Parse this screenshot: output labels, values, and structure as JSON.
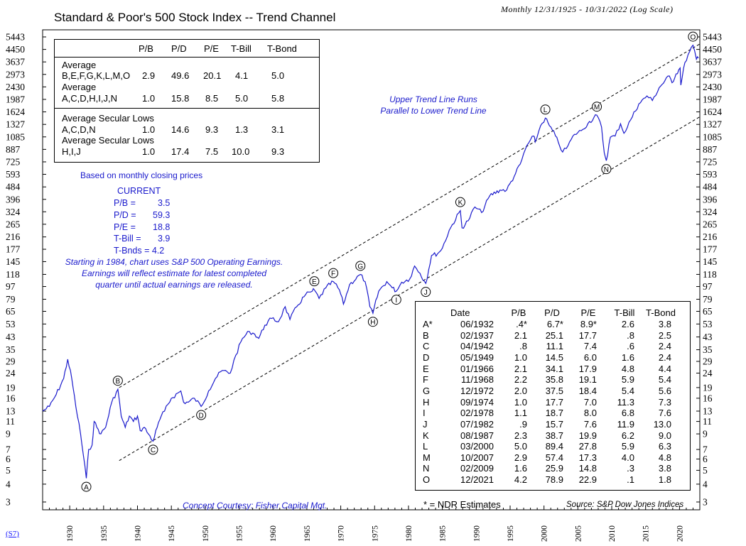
{
  "title": "Standard & Poor's 500 Stock Index -- Trend Channel",
  "subtitle": "Monthly 12/31/1925 - 10/31/2022 (Log Scale)",
  "chart_data": {
    "type": "line",
    "scale": "log",
    "ylim": [
      3,
      5443
    ],
    "xlim": [
      1926,
      2023
    ],
    "y_ticks": [
      "5443",
      "4450",
      "3637",
      "2973",
      "2430",
      "1987",
      "1624",
      "1327",
      "1085",
      "887",
      "725",
      "593",
      "484",
      "396",
      "324",
      "265",
      "216",
      "177",
      "145",
      "118",
      "97",
      "79",
      "65",
      "53",
      "43",
      "35",
      "29",
      "24",
      "19",
      "16",
      "13",
      "11",
      "9",
      "7",
      "6",
      "5",
      "4",
      "3"
    ],
    "x_ticks": [
      "1930",
      "1935",
      "1940",
      "1945",
      "1950",
      "1955",
      "1960",
      "1965",
      "1970",
      "1975",
      "1980",
      "1985",
      "1990",
      "1995",
      "2000",
      "2005",
      "2010",
      "2015",
      "2020"
    ],
    "series": [
      {
        "name": "S&P 500",
        "x": [
          1926,
          1927,
          1928,
          1929.1,
          1929.7,
          1930.3,
          1930.9,
          1931.6,
          1932.45,
          1932.8,
          1933.3,
          1933.6,
          1934,
          1934.6,
          1935.3,
          1936.2,
          1937.1,
          1937.6,
          1938.2,
          1938.8,
          1939.4,
          1940,
          1940.4,
          1941,
          1941.6,
          1942.3,
          1942.9,
          1943.5,
          1944,
          1945,
          1946.4,
          1946.8,
          1947.5,
          1948.4,
          1949.4,
          1950.5,
          1951.5,
          1952.5,
          1953.7,
          1954.5,
          1955.5,
          1956.5,
          1957.3,
          1957.9,
          1958.8,
          1959.8,
          1960.8,
          1961.8,
          1962.5,
          1963.5,
          1964.8,
          1965.8,
          1966.1,
          1966.8,
          1967.8,
          1968.9,
          1969.8,
          1970.4,
          1971.3,
          1972.9,
          1973.6,
          1974.3,
          1974.75,
          1975.6,
          1976.8,
          1977.6,
          1978.2,
          1979,
          1980.2,
          1980.9,
          1981.7,
          1982.55,
          1983.4,
          1984.3,
          1985,
          1986,
          1987.65,
          1987.9,
          1988.8,
          1989.8,
          1990.8,
          1992,
          1993.5,
          1994.5,
          1995.8,
          1996.5,
          1997.5,
          1998.5,
          1998.7,
          1999.5,
          2000.2,
          2000.8,
          2001.7,
          2002.1,
          2002.75,
          2003.3,
          2004.5,
          2005.5,
          2006.5,
          2007.8,
          2008.5,
          2008.9,
          2009.2,
          2009.8,
          2010.5,
          2011.3,
          2011.8,
          2012.8,
          2014,
          2015.2,
          2016,
          2017,
          2018.5,
          2018.9,
          2019.5,
          2020.1,
          2020.2,
          2020.8,
          2021.5,
          2021.99,
          2022.5,
          2022.8
        ],
        "values": [
          13,
          14,
          17,
          22,
          30,
          22,
          14,
          9,
          4.4,
          7,
          7.5,
          11,
          10,
          9,
          10,
          15,
          18.5,
          12,
          10,
          12,
          11,
          12,
          9.5,
          10,
          9,
          8,
          10,
          12,
          13,
          16,
          18,
          15,
          15,
          16,
          14,
          18,
          22,
          25,
          24,
          32,
          42,
          47,
          45,
          42,
          52,
          58,
          55,
          70,
          57,
          70,
          85,
          90,
          92,
          80,
          95,
          105,
          92,
          73,
          100,
          118,
          105,
          70,
          63,
          90,
          105,
          95,
          90,
          104,
          110,
          135,
          120,
          102,
          160,
          165,
          180,
          240,
          330,
          250,
          280,
          350,
          320,
          420,
          460,
          460,
          600,
          700,
          950,
          1100,
          1000,
          1300,
          1470,
          1300,
          1100,
          1000,
          850,
          900,
          1130,
          1200,
          1350,
          1540,
          1270,
          840,
          740,
          1080,
          1100,
          1340,
          1150,
          1430,
          1850,
          2100,
          1950,
          2400,
          2900,
          2600,
          3000,
          3300,
          2500,
          3600,
          4300,
          4766,
          3800,
          3871
        ]
      }
    ],
    "trend_lines": [
      {
        "name": "upper",
        "x": [
          1937.3,
          2023
        ],
        "values": [
          19,
          4860
        ],
        "style": "dashed"
      },
      {
        "name": "lower",
        "x": [
          1937.3,
          2023
        ],
        "values": [
          5.85,
          1500
        ],
        "style": "dashed"
      }
    ],
    "point_labels": [
      {
        "label": "A",
        "x": 1932.45,
        "y": 4.4,
        "pos": "below"
      },
      {
        "label": "B",
        "x": 1937.1,
        "y": 18.5,
        "pos": "above"
      },
      {
        "label": "C",
        "x": 1942.3,
        "y": 8,
        "pos": "below"
      },
      {
        "label": "D",
        "x": 1949.4,
        "y": 14,
        "pos": "below"
      },
      {
        "label": "E",
        "x": 1966.1,
        "y": 92,
        "pos": "above"
      },
      {
        "label": "F",
        "x": 1968.9,
        "y": 105,
        "pos": "above"
      },
      {
        "label": "G",
        "x": 1972.9,
        "y": 118,
        "pos": "above"
      },
      {
        "label": "H",
        "x": 1974.75,
        "y": 63,
        "pos": "below"
      },
      {
        "label": "I",
        "x": 1978.2,
        "y": 90,
        "pos": "below"
      },
      {
        "label": "J",
        "x": 1982.55,
        "y": 102,
        "pos": "below"
      },
      {
        "label": "K",
        "x": 1987.65,
        "y": 330,
        "pos": "above"
      },
      {
        "label": "L",
        "x": 2000.2,
        "y": 1470,
        "pos": "above"
      },
      {
        "label": "M",
        "x": 2007.8,
        "y": 1540,
        "pos": "above"
      },
      {
        "label": "N",
        "x": 2009.2,
        "y": 740,
        "pos": "below"
      },
      {
        "label": "O",
        "x": 2021.99,
        "y": 4766,
        "pos": "above"
      }
    ]
  },
  "averages_table": {
    "headers": [
      "P/B",
      "P/D",
      "P/E",
      "T-Bill",
      "T-Bond"
    ],
    "rows": [
      {
        "label1": "Average",
        "label2": "B,E,F,G,K,L,M,O",
        "pb": "2.9",
        "pd": "49.6",
        "pe": "20.1",
        "tbill": "4.1",
        "tbond": "5.0"
      },
      {
        "label1": "Average",
        "label2": "A,C,D,H,I,J,N",
        "pb": "1.0",
        "pd": "15.8",
        "pe": "8.5",
        "tbill": "5.0",
        "tbond": "5.8"
      },
      {
        "label1": "Average Secular Lows",
        "label2": "A,C,D,N",
        "pb": "1.0",
        "pd": "14.6",
        "pe": "9.3",
        "tbill": "1.3",
        "tbond": "3.1"
      },
      {
        "label1": "Average Secular Lows",
        "label2": "H,I,J",
        "pb": "1.0",
        "pd": "17.4",
        "pe": "7.5",
        "tbill": "10.0",
        "tbond": "9.3"
      }
    ]
  },
  "notes": {
    "monthly": "Based on monthly closing prices",
    "current_title": "CURRENT",
    "current": [
      {
        "label": "P/B =",
        "value": "3.5"
      },
      {
        "label": "P/D =",
        "value": "59.3"
      },
      {
        "label": "P/E =",
        "value": "18.8"
      },
      {
        "label": "T-Bill =",
        "value": "3.9"
      }
    ],
    "tbnds": "T-Bnds = 4.2",
    "earnings": [
      "Starting in 1984, chart uses S&P 500 Operating Earnings.",
      "Earnings will reflect estimate for latest completed",
      "quarter until actual earnings are released."
    ],
    "trend": [
      "Upper Trend Line Runs",
      "Parallel to Lower Trend Line"
    ],
    "concept": "Concept Courtesy: Fisher Capital Mgt.",
    "ndr": "* = NDR Estimates",
    "source": "Source: S&P Dow Jones Indices",
    "s7": "(S7)"
  },
  "points_table": {
    "headers": [
      "Date",
      "P/B",
      "P/D",
      "P/E",
      "T-Bill",
      "T-Bond"
    ],
    "rows": [
      [
        "A*",
        "06/1932",
        ".4*",
        "6.7*",
        "8.9*",
        "2.6",
        "3.8"
      ],
      [
        "B",
        "02/1937",
        "2.1",
        "25.1",
        "17.7",
        ".8",
        "2.5"
      ],
      [
        "C",
        "04/1942",
        ".8",
        "11.1",
        "7.4",
        ".6",
        "2.4"
      ],
      [
        "D",
        "05/1949",
        "1.0",
        "14.5",
        "6.0",
        "1.6",
        "2.4"
      ],
      [
        "E",
        "01/1966",
        "2.1",
        "34.1",
        "17.9",
        "4.8",
        "4.4"
      ],
      [
        "F",
        "11/1968",
        "2.2",
        "35.8",
        "19.1",
        "5.9",
        "5.4"
      ],
      [
        "G",
        "12/1972",
        "2.0",
        "37.5",
        "18.4",
        "5.4",
        "5.6"
      ],
      [
        "H",
        "09/1974",
        "1.0",
        "17.7",
        "7.0",
        "11.3",
        "7.3"
      ],
      [
        "I",
        "02/1978",
        "1.1",
        "18.7",
        "8.0",
        "6.8",
        "7.6"
      ],
      [
        "J",
        "07/1982",
        ".9",
        "15.7",
        "7.6",
        "11.9",
        "13.0"
      ],
      [
        "K",
        "08/1987",
        "2.3",
        "38.7",
        "19.9",
        "6.2",
        "9.0"
      ],
      [
        "L",
        "03/2000",
        "5.0",
        "89.4",
        "27.8",
        "5.9",
        "6.3"
      ],
      [
        "M",
        "10/2007",
        "2.9",
        "57.4",
        "17.3",
        "4.0",
        "4.8"
      ],
      [
        "N",
        "02/2009",
        "1.6",
        "25.9",
        "14.8",
        ".3",
        "3.8"
      ],
      [
        "O",
        "12/2021",
        "4.2",
        "78.9",
        "22.9",
        ".1",
        "1.8"
      ]
    ]
  },
  "colors": {
    "line": "#1a1acc",
    "text_blue": "#1a1acc",
    "axis": "#000000"
  }
}
